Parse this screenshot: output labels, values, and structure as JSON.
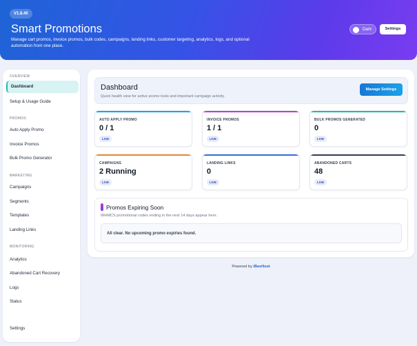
{
  "header": {
    "version": "V1.8.40",
    "title": "Smart Promotions",
    "subtitle": "Manage cart promos, invoice promos, bulk codes, campaigns, landing links, customer targeting, analytics, logs, and optional automation from one place.",
    "dark_label": "Dark",
    "settings_label": "Settings"
  },
  "sidebar": {
    "overview": "OVERVIEW",
    "dashboard": "Dashboard",
    "setup": "Setup & Usage Guide",
    "promos": "PROMOS",
    "auto_apply": "Auto Apply Promo",
    "invoice": "Invoice Promos",
    "bulk": "Bulk Promo Generator",
    "marketing": "MARKETING",
    "campaigns": "Campaigns",
    "segments": "Segments",
    "templates": "Templates",
    "landing": "Landing Links",
    "monitoring": "MONITORING",
    "analytics": "Analytics",
    "abandoned": "Abandoned Cart Recovery",
    "logs": "Logs",
    "status": "Status",
    "settings": "Settings"
  },
  "dashboard": {
    "title": "Dashboard",
    "subtitle": "Quick health view for active promo tools and important campaign activity.",
    "manage_label": "Manage Settings"
  },
  "cards": [
    {
      "label": "AUTO APPLY PROMO",
      "value": "0 / 1",
      "badge": "LIVE",
      "color": "#1aa2e8"
    },
    {
      "label": "INVOICE PROMOS",
      "value": "1 / 1",
      "badge": "LIVE",
      "color": "#c03ad0"
    },
    {
      "label": "BULK PROMOS GENERATED",
      "value": "0",
      "badge": "LIVE",
      "color": "#22b8a8"
    },
    {
      "label": "CAMPAIGNS",
      "value": "2 Running",
      "badge": "LIVE",
      "color": "#f08a2c"
    },
    {
      "label": "LANDING LINKS",
      "value": "0",
      "badge": "LIVE",
      "color": "#3b6fe0"
    },
    {
      "label": "ABANDONED CARTS",
      "value": "48",
      "badge": "LIVE",
      "color": "#374151"
    }
  ],
  "expiring": {
    "title": "Promos Expiring Soon",
    "subtitle": "WHMCS promotional codes ending in the next 14 days appear here.",
    "empty": "All clear. No upcoming promo expiries found."
  },
  "footer": {
    "prefix": "Powered by ",
    "brand": "iBeeHost"
  }
}
